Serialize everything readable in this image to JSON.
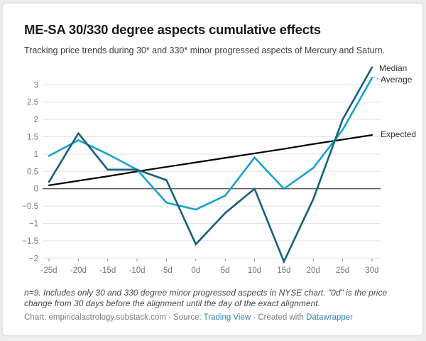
{
  "chart_data": {
    "type": "line",
    "title": "ME-SA 30/330 degree aspects cumulative effects",
    "subtitle": "Tracking price trends during 30* and 330* minor progressed aspects of Mercury and Saturn.",
    "xlabel": "",
    "ylabel": "",
    "categories": [
      "-25d",
      "-20d",
      "-15d",
      "-10d",
      "-5d",
      "0d",
      "5d",
      "10d",
      "15d",
      "20d",
      "25d",
      "30d"
    ],
    "series": [
      {
        "name": "Median",
        "color": "#15607a",
        "width": 2.6,
        "values": [
          0.2,
          1.6,
          0.55,
          0.55,
          0.25,
          -1.6,
          -0.7,
          0,
          -2.1,
          -0.3,
          2.0,
          3.5
        ]
      },
      {
        "name": "Average",
        "color": "#18a1cd",
        "width": 2.6,
        "values": [
          0.95,
          1.4,
          1.0,
          0.55,
          -0.4,
          -0.6,
          -0.2,
          0.9,
          0,
          0.6,
          1.7,
          3.2
        ]
      },
      {
        "name": "Expected",
        "color": "#000000",
        "width": 2.2,
        "values": [
          0.1,
          0.23,
          0.36,
          0.5,
          0.63,
          0.76,
          0.89,
          1.02,
          1.15,
          1.29,
          1.42,
          1.55
        ]
      }
    ],
    "y_ticks": [
      "3",
      "2.5",
      "2",
      "1.5",
      "1",
      "0.5",
      "0",
      "−0.5",
      "−1",
      "−1.5",
      "−2"
    ],
    "y_tick_values": [
      3,
      2.5,
      2,
      1.5,
      1,
      0.5,
      0,
      -0.5,
      -1,
      -1.5,
      -2
    ],
    "ylim": [
      -2.2,
      3.6
    ],
    "grid": true,
    "legend_position": "right-of-line-ends",
    "zero_line": true
  },
  "legend": {
    "median": "Median",
    "average": "Average",
    "expected": "Expected"
  },
  "footer": {
    "note": "n=9. Includes only 30 and 330 degree minor progressed aspects in NYSE chart. \"0d\" is the price change from 30 days before the alignment until the day of the exact alignment.",
    "credit_prefix": "Chart: empiricalastrology.substack.com · Source: ",
    "source_link": "Trading View",
    "credit_middle": " · Created with ",
    "datawrapper_link": "Datawrapper"
  },
  "colors": {
    "median": "#15607a",
    "average": "#18a1cd",
    "expected": "#000000",
    "grid": "#e3e3e3",
    "zero_line": "#1a1a1a",
    "axis_text": "#757575",
    "link": "#3580bb"
  }
}
